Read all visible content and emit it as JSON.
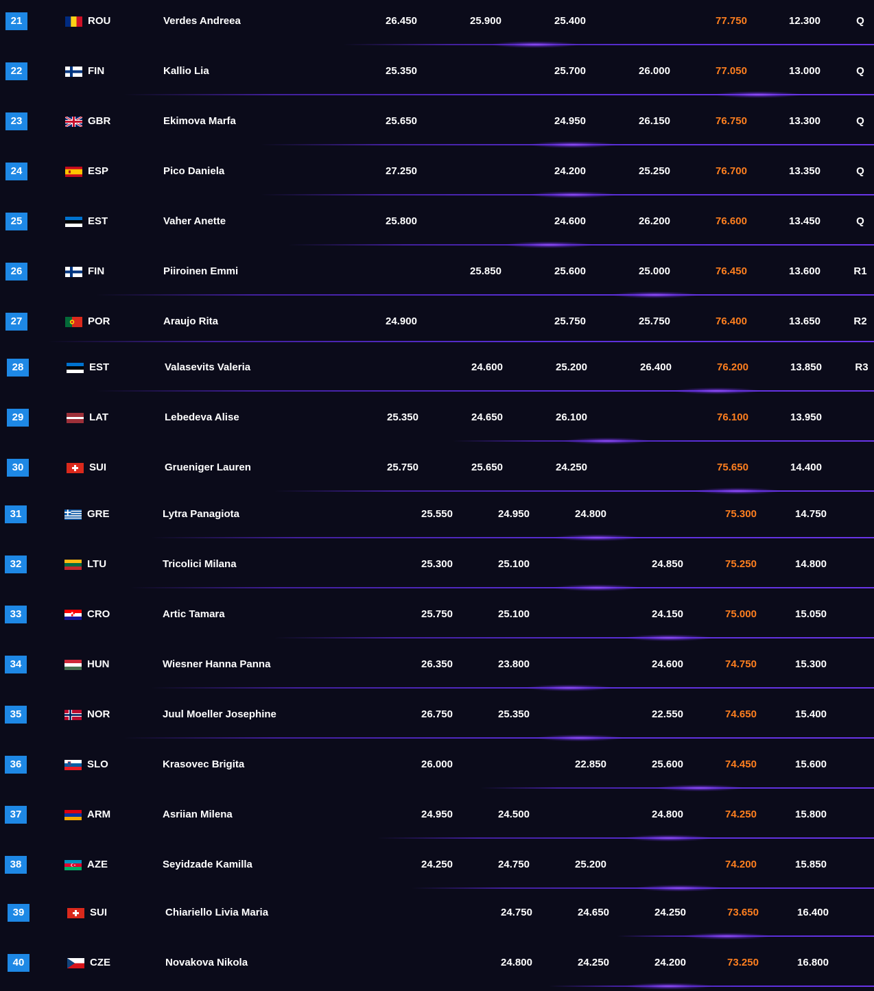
{
  "colors": {
    "background": "#0b0b1a",
    "rank_badge": "#1e88e5",
    "total_text": "#ff7f1f",
    "divider": "#5a2fd8",
    "text": "#ffffff"
  },
  "rows": [
    {
      "rank": "21",
      "flag": "romania-flag",
      "nation": "ROU",
      "name": "Verdes Andreea",
      "s1": "26.450",
      "s2": "25.900",
      "s3": "25.400",
      "s4": "",
      "total": "77.750",
      "gap": "12.300",
      "q": "Q"
    },
    {
      "rank": "22",
      "flag": "finland-flag",
      "nation": "FIN",
      "name": "Kallio Lia",
      "s1": "25.350",
      "s2": "",
      "s3": "25.700",
      "s4": "26.000",
      "total": "77.050",
      "gap": "13.000",
      "q": "Q"
    },
    {
      "rank": "23",
      "flag": "great-britain-flag",
      "nation": "GBR",
      "name": "Ekimova Marfa",
      "s1": "25.650",
      "s2": "",
      "s3": "24.950",
      "s4": "26.150",
      "total": "76.750",
      "gap": "13.300",
      "q": "Q"
    },
    {
      "rank": "24",
      "flag": "spain-flag",
      "nation": "ESP",
      "name": "Pico Daniela",
      "s1": "27.250",
      "s2": "",
      "s3": "24.200",
      "s4": "25.250",
      "total": "76.700",
      "gap": "13.350",
      "q": "Q"
    },
    {
      "rank": "25",
      "flag": "estonia-flag",
      "nation": "EST",
      "name": "Vaher Anette",
      "s1": "25.800",
      "s2": "",
      "s3": "24.600",
      "s4": "26.200",
      "total": "76.600",
      "gap": "13.450",
      "q": "Q"
    },
    {
      "rank": "26",
      "flag": "finland-flag",
      "nation": "FIN",
      "name": "Piiroinen Emmi",
      "s1": "",
      "s2": "25.850",
      "s3": "25.600",
      "s4": "25.000",
      "total": "76.450",
      "gap": "13.600",
      "q": "R1"
    },
    {
      "rank": "27",
      "flag": "portugal-flag",
      "nation": "POR",
      "name": "Araujo Rita",
      "s1": "24.900",
      "s2": "",
      "s3": "25.750",
      "s4": "25.750",
      "total": "76.400",
      "gap": "13.650",
      "q": "R2"
    },
    {
      "rank": "28",
      "flag": "estonia-flag",
      "nation": "EST",
      "name": "Valasevits Valeria",
      "s1": "",
      "s2": "24.600",
      "s3": "25.200",
      "s4": "26.400",
      "total": "76.200",
      "gap": "13.850",
      "q": "R3"
    },
    {
      "rank": "29",
      "flag": "latvia-flag",
      "nation": "LAT",
      "name": "Lebedeva Alise",
      "s1": "25.350",
      "s2": "24.650",
      "s3": "26.100",
      "s4": "",
      "total": "76.100",
      "gap": "13.950",
      "q": ""
    },
    {
      "rank": "30",
      "flag": "switzerland-flag",
      "nation": "SUI",
      "name": "Grueniger Lauren",
      "s1": "25.750",
      "s2": "25.650",
      "s3": "24.250",
      "s4": "",
      "total": "75.650",
      "gap": "14.400",
      "q": ""
    },
    {
      "rank": "31",
      "flag": "greece-flag",
      "nation": "GRE",
      "name": "Lytra Panagiota",
      "s1": "25.550",
      "s2": "24.950",
      "s3": "24.800",
      "s4": "",
      "total": "75.300",
      "gap": "14.750",
      "q": ""
    },
    {
      "rank": "32",
      "flag": "lithuania-flag",
      "nation": "LTU",
      "name": "Tricolici Milana",
      "s1": "25.300",
      "s2": "25.100",
      "s3": "",
      "s4": "24.850",
      "total": "75.250",
      "gap": "14.800",
      "q": ""
    },
    {
      "rank": "33",
      "flag": "croatia-flag",
      "nation": "CRO",
      "name": "Artic Tamara",
      "s1": "25.750",
      "s2": "25.100",
      "s3": "",
      "s4": "24.150",
      "total": "75.000",
      "gap": "15.050",
      "q": ""
    },
    {
      "rank": "34",
      "flag": "hungary-flag",
      "nation": "HUN",
      "name": "Wiesner Hanna Panna",
      "s1": "26.350",
      "s2": "23.800",
      "s3": "",
      "s4": "24.600",
      "total": "74.750",
      "gap": "15.300",
      "q": ""
    },
    {
      "rank": "35",
      "flag": "norway-flag",
      "nation": "NOR",
      "name": "Juul Moeller Josephine",
      "s1": "26.750",
      "s2": "25.350",
      "s3": "",
      "s4": "22.550",
      "total": "74.650",
      "gap": "15.400",
      "q": ""
    },
    {
      "rank": "36",
      "flag": "slovenia-flag",
      "nation": "SLO",
      "name": "Krasovec Brigita",
      "s1": "26.000",
      "s2": "",
      "s3": "22.850",
      "s4": "25.600",
      "total": "74.450",
      "gap": "15.600",
      "q": ""
    },
    {
      "rank": "37",
      "flag": "armenia-flag",
      "nation": "ARM",
      "name": "Asriian Milena",
      "s1": "24.950",
      "s2": "24.500",
      "s3": "",
      "s4": "24.800",
      "total": "74.250",
      "gap": "15.800",
      "q": ""
    },
    {
      "rank": "38",
      "flag": "azerbaijan-flag",
      "nation": "AZE",
      "name": "Seyidzade Kamilla",
      "s1": "24.250",
      "s2": "24.750",
      "s3": "25.200",
      "s4": "",
      "total": "74.200",
      "gap": "15.850",
      "q": ""
    },
    {
      "rank": "39",
      "flag": "switzerland-flag",
      "nation": "SUI",
      "name": "Chiariello Livia Maria",
      "s1": "",
      "s2": "24.750",
      "s3": "24.650",
      "s4": "24.250",
      "total": "73.650",
      "gap": "16.400",
      "q": ""
    },
    {
      "rank": "40",
      "flag": "czechia-flag",
      "nation": "CZE",
      "name": "Novakova Nikola",
      "s1": "",
      "s2": "24.800",
      "s3": "24.250",
      "s4": "24.200",
      "total": "73.250",
      "gap": "16.800",
      "q": ""
    }
  ]
}
